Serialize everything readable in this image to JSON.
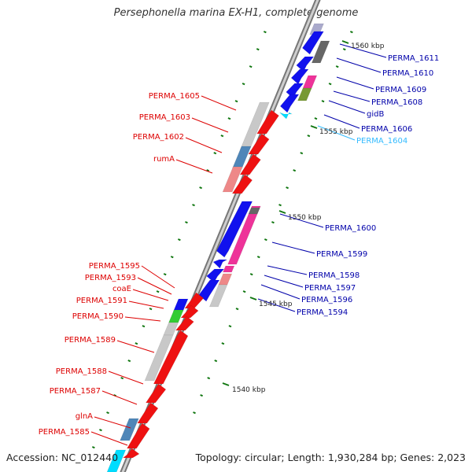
{
  "title": "Persephonella marina EX-H1, complete genome",
  "footer": {
    "accession": "Accession: NC_012440",
    "topology": "Topology: circular; Length: 1,930,284 bp; Genes: 2,023"
  },
  "kbp_labels": [
    "1560 kbp",
    "1555 kbp",
    "1550 kbp",
    "1545 kbp",
    "1540 kbp"
  ],
  "genes_left": [
    "PERMA_1605",
    "PERMA_1603",
    "PERMA_1602",
    "rumA",
    "PERMA_1595",
    "PERMA_1593",
    "coaE",
    "PERMA_1591",
    "PERMA_1590",
    "PERMA_1589",
    "PERMA_1588",
    "PERMA_1587",
    "glnA",
    "PERMA_1585"
  ],
  "genes_right": [
    "PERMA_1611",
    "PERMA_1610",
    "PERMA_1609",
    "PERMA_1608",
    "gidB",
    "PERMA_1606",
    "PERMA_1604",
    "PERMA_1600",
    "PERMA_1599",
    "PERMA_1598",
    "PERMA_1597",
    "PERMA_1596",
    "PERMA_1594"
  ],
  "colors": {
    "forward_label": "#dd0000",
    "reverse_label": "#0000aa",
    "highlight_label": "#33bbff",
    "forward_gene": "#ee1111",
    "reverse_gene": "#1111ee",
    "gray_gene": "#c8c8c8",
    "dark_gray_gene": "#666666",
    "steel_blue_gene": "#4f86b8",
    "pink_gene": "#ee3399",
    "green_gene": "#33cc33",
    "olive_gene": "#779933",
    "cyan_gene": "#00ddff",
    "tick": "#117711",
    "backbone": "#888888"
  }
}
